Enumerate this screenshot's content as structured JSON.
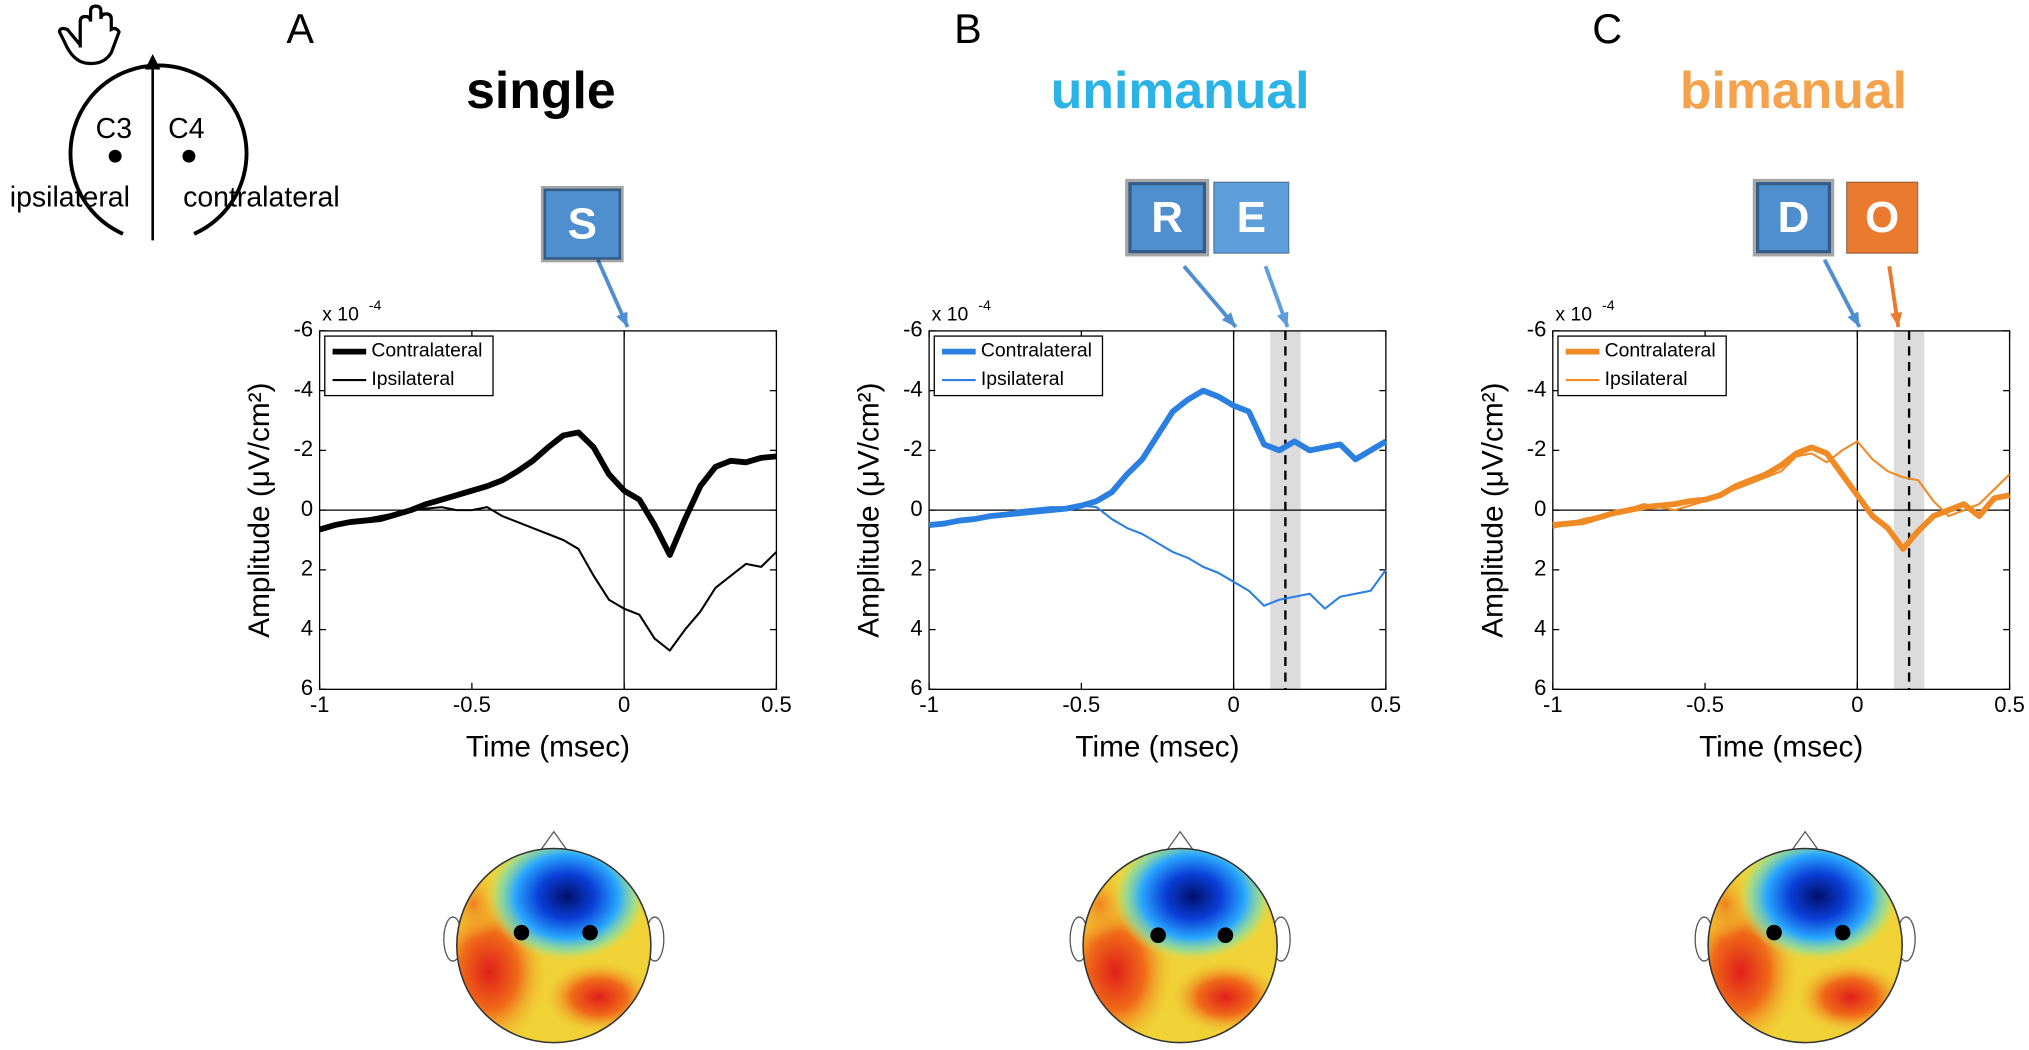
{
  "diagram": {
    "left_electrode": "C3",
    "right_electrode": "C4",
    "left_side": "ipsilateral",
    "right_side": "contralateral"
  },
  "chart_data": [
    {
      "type": "line",
      "panel": "A",
      "title": "single",
      "title_color": "#000000",
      "multiplier": "x 10",
      "multiplier_exp": "-4",
      "xlabel": "Time (msec)",
      "ylabel": "Amplitude (μV/cm²)",
      "x": [
        -1,
        -0.95,
        -0.9,
        -0.85,
        -0.8,
        -0.75,
        -0.7,
        -0.65,
        -0.6,
        -0.55,
        -0.5,
        -0.45,
        -0.4,
        -0.35,
        -0.3,
        -0.25,
        -0.2,
        -0.15,
        -0.1,
        -0.05,
        0,
        0.05,
        0.1,
        0.15,
        0.2,
        0.25,
        0.3,
        0.35,
        0.4,
        0.45,
        0.5
      ],
      "series": [
        {
          "name": "Contralateral",
          "color": "#000000",
          "values": [
            0.65,
            0.5,
            0.4,
            0.35,
            0.3,
            0.15,
            0,
            -0.2,
            -0.35,
            -0.5,
            -0.65,
            -0.8,
            -1.0,
            -1.3,
            -1.65,
            -2.1,
            -2.5,
            -2.6,
            -2.1,
            -1.2,
            -0.65,
            -0.35,
            0.5,
            1.5,
            0.3,
            -0.8,
            -1.45,
            -1.65,
            -1.6,
            -1.75,
            -1.8
          ]
        },
        {
          "name": "Ipsilateral",
          "color": "#000000",
          "values": [
            0.7,
            0.55,
            0.4,
            0.3,
            0.2,
            0.1,
            0,
            -0.05,
            -0.1,
            0,
            0,
            -0.1,
            0.2,
            0.4,
            0.6,
            0.8,
            1.0,
            1.3,
            2.2,
            3.0,
            3.3,
            3.5,
            4.3,
            4.7,
            4.0,
            3.4,
            2.6,
            2.2,
            1.8,
            1.9,
            1.4
          ]
        }
      ],
      "xlim": [
        -1,
        0.5
      ],
      "ylim": [
        6,
        -6
      ],
      "xticks": [
        -1,
        -0.5,
        0,
        0.5
      ],
      "yticks": [
        -6,
        -4,
        -2,
        0,
        2,
        4,
        6
      ],
      "hlines": [
        0
      ],
      "vlines": [
        0
      ],
      "callouts": [
        {
          "label": "S",
          "color": "#4f8fd0"
        }
      ]
    },
    {
      "type": "line",
      "panel": "B",
      "title": "unimanual",
      "title_color": "#2bb3e6",
      "multiplier": "x 10",
      "multiplier_exp": "-4",
      "xlabel": "Time (msec)",
      "ylabel": "Amplitude (μV/cm²)",
      "x": [
        -1,
        -0.95,
        -0.9,
        -0.85,
        -0.8,
        -0.75,
        -0.7,
        -0.65,
        -0.6,
        -0.55,
        -0.5,
        -0.45,
        -0.4,
        -0.35,
        -0.3,
        -0.25,
        -0.2,
        -0.15,
        -0.1,
        -0.05,
        0,
        0.05,
        0.1,
        0.15,
        0.2,
        0.25,
        0.3,
        0.35,
        0.4,
        0.45,
        0.5
      ],
      "series": [
        {
          "name": "Contralateral",
          "color": "#2a7fe0",
          "values": [
            0.5,
            0.45,
            0.35,
            0.3,
            0.2,
            0.15,
            0.1,
            0.05,
            0,
            -0.05,
            -0.15,
            -0.3,
            -0.6,
            -1.2,
            -1.7,
            -2.5,
            -3.3,
            -3.7,
            -4.0,
            -3.8,
            -3.5,
            -3.3,
            -2.2,
            -2.0,
            -2.3,
            -2.0,
            -2.1,
            -2.2,
            -1.7,
            -2.0,
            -2.3
          ]
        },
        {
          "name": "Ipsilateral",
          "color": "#2a7fe0",
          "values": [
            0.5,
            0.4,
            0.3,
            0.25,
            0.2,
            0.1,
            0,
            -0.05,
            -0.1,
            -0.1,
            -0.15,
            -0.1,
            0.3,
            0.6,
            0.8,
            1.1,
            1.4,
            1.6,
            1.9,
            2.1,
            2.4,
            2.7,
            3.2,
            3.0,
            2.9,
            2.8,
            3.3,
            2.9,
            2.8,
            2.7,
            2.0
          ]
        }
      ],
      "xlim": [
        -1,
        0.5
      ],
      "ylim": [
        6,
        -6
      ],
      "xticks": [
        -1,
        -0.5,
        0,
        0.5
      ],
      "yticks": [
        -6,
        -4,
        -2,
        0,
        2,
        4,
        6
      ],
      "hlines": [
        0
      ],
      "vlines": [
        0
      ],
      "dashed_line": 0.17,
      "shaded_span": [
        0.12,
        0.22
      ],
      "callouts": [
        {
          "label": "R",
          "color": "#4f8fd0"
        },
        {
          "label": "E",
          "color": "#5d9edb"
        }
      ]
    },
    {
      "type": "line",
      "panel": "C",
      "title": "bimanual",
      "title_color": "#f4a24c",
      "multiplier": "x 10",
      "multiplier_exp": "-4",
      "xlabel": "Time (msec)",
      "ylabel": "Amplitude (μV/cm²)",
      "x": [
        -1,
        -0.95,
        -0.9,
        -0.85,
        -0.8,
        -0.75,
        -0.7,
        -0.65,
        -0.6,
        -0.55,
        -0.5,
        -0.45,
        -0.4,
        -0.35,
        -0.3,
        -0.25,
        -0.2,
        -0.15,
        -0.1,
        -0.05,
        0,
        0.05,
        0.1,
        0.15,
        0.2,
        0.25,
        0.3,
        0.35,
        0.4,
        0.45,
        0.5
      ],
      "series": [
        {
          "name": "Contralateral",
          "color": "#f08a24",
          "values": [
            0.5,
            0.45,
            0.4,
            0.25,
            0.1,
            0,
            -0.1,
            -0.15,
            -0.2,
            -0.3,
            -0.35,
            -0.5,
            -0.8,
            -1.0,
            -1.2,
            -1.5,
            -1.9,
            -2.1,
            -1.9,
            -1.2,
            -0.5,
            0.2,
            0.6,
            1.3,
            0.7,
            0.2,
            0,
            -0.2,
            0.2,
            -0.4,
            -0.5
          ]
        },
        {
          "name": "Ipsilateral",
          "color": "#f08a24",
          "values": [
            0.6,
            0.45,
            0.3,
            0.2,
            0.1,
            -0.05,
            -0.2,
            -0.1,
            0,
            -0.15,
            -0.3,
            -0.5,
            -0.7,
            -0.9,
            -1.1,
            -1.3,
            -1.8,
            -1.9,
            -1.6,
            -2.0,
            -2.3,
            -1.7,
            -1.3,
            -1.1,
            -1.0,
            -0.3,
            0.2,
            0,
            -0.2,
            -0.7,
            -1.2
          ]
        }
      ],
      "xlim": [
        -1,
        0.5
      ],
      "ylim": [
        6,
        -6
      ],
      "xticks": [
        -1,
        -0.5,
        0,
        0.5
      ],
      "yticks": [
        -6,
        -4,
        -2,
        0,
        2,
        4,
        6
      ],
      "hlines": [
        0
      ],
      "vlines": [
        0
      ],
      "dashed_line": 0.17,
      "shaded_span": [
        0.12,
        0.22
      ],
      "callouts": [
        {
          "label": "D",
          "color": "#4f8fd0"
        },
        {
          "label": "O",
          "color": "#ea7b2e"
        }
      ]
    }
  ]
}
